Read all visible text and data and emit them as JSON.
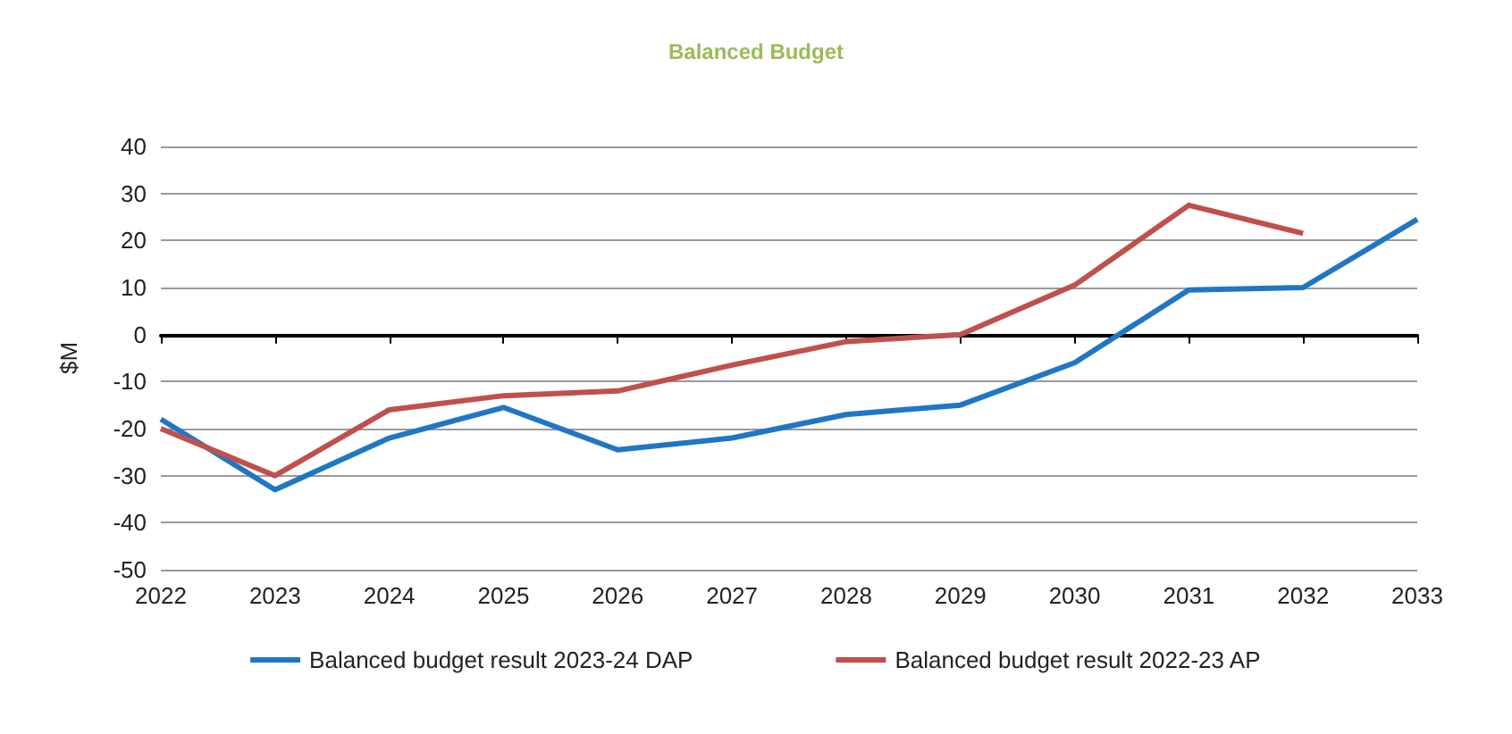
{
  "chart_data": {
    "type": "line",
    "title": "Balanced Budget",
    "ylabel": "$M",
    "x": [
      2022,
      2023,
      2024,
      2025,
      2026,
      2027,
      2028,
      2029,
      2030,
      2031,
      2032,
      2033
    ],
    "series": [
      {
        "name": "Balanced budget result 2023-24 DAP",
        "color": "#1f77c4",
        "values": [
          -18,
          -33,
          -22,
          -15.5,
          -24.5,
          -22,
          -17,
          -15,
          -6,
          9.5,
          10,
          24.5
        ]
      },
      {
        "name": "Balanced budget result 2022-23 AP",
        "color": "#c0504d",
        "values": [
          -20,
          -30,
          -16,
          -13,
          -12,
          -6.5,
          -1.5,
          0,
          10.5,
          27.5,
          21.5,
          null
        ]
      }
    ],
    "xlim": [
      2022,
      2033
    ],
    "xticks": [
      2022,
      2023,
      2024,
      2025,
      2026,
      2027,
      2028,
      2029,
      2030,
      2031,
      2032,
      2033
    ],
    "ylim": [
      -50,
      40
    ],
    "yticks": [
      -50,
      -40,
      -30,
      -20,
      -10,
      0,
      10,
      20,
      30,
      40
    ],
    "grid": "y",
    "legend": "bottom",
    "marker": "none",
    "line_style": "solid"
  }
}
